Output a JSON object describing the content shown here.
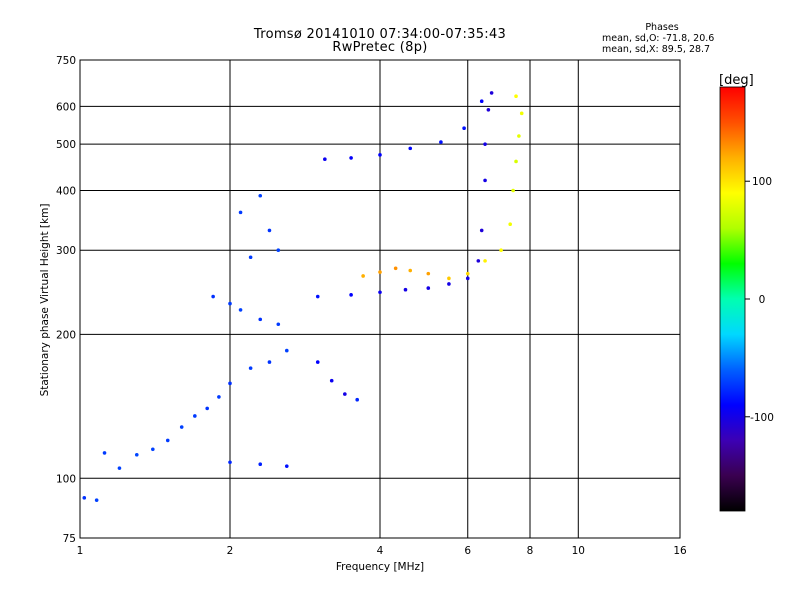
{
  "header": {
    "title_line1": "Tromsø 20141010 07:34:00-07:35:43",
    "title_line2": "RwPretec (8p)"
  },
  "phases": {
    "heading": "Phases",
    "stats": [
      {
        "label": "mean, sd,O:",
        "value1": "-71.8,",
        "value2": "20.6"
      },
      {
        "label": "mean, sd,X:",
        "value1": "89.5,",
        "value2": "28.7"
      }
    ]
  },
  "colorbar": {
    "unit": "[deg]",
    "range": [
      -180,
      180
    ],
    "ticks": [
      {
        "value": 100,
        "label": "100"
      },
      {
        "value": 0,
        "label": "0"
      },
      {
        "value": -100,
        "label": "-100"
      }
    ],
    "colors": [
      "#000000",
      "#3a0050",
      "#3c00b4",
      "#0000ff",
      "#0060ff",
      "#00d8ff",
      "#00ffb0",
      "#00ff00",
      "#b0ff00",
      "#ffff00",
      "#ffb000",
      "#ff5000",
      "#ff0000"
    ]
  },
  "chart_data": {
    "type": "scatter",
    "title": "Tromsø 20141010 07:34:00-07:35:43",
    "subtitle": "RwPretec (8p)",
    "xlabel": "Frequency [MHz]",
    "ylabel": "Stationary phase Virtual Height [km]",
    "x_scale": "log",
    "y_scale": "log",
    "xlim": [
      1,
      16
    ],
    "ylim": [
      75,
      750
    ],
    "x_ticks": [
      {
        "value": 1,
        "label": "1"
      },
      {
        "value": 2,
        "label": "2"
      },
      {
        "value": 4,
        "label": "4"
      },
      {
        "value": 6,
        "label": "6"
      },
      {
        "value": 8,
        "label": "8"
      },
      {
        "value": 10,
        "label": "10"
      },
      {
        "value": 16,
        "label": "16"
      }
    ],
    "y_ticks": [
      {
        "value": 75,
        "label": "75"
      },
      {
        "value": 100,
        "label": "100"
      },
      {
        "value": 200,
        "label": "200"
      },
      {
        "value": 300,
        "label": "300"
      },
      {
        "value": 400,
        "label": "400"
      },
      {
        "value": 500,
        "label": "500"
      },
      {
        "value": 600,
        "label": "600"
      },
      {
        "value": 750,
        "label": "750"
      }
    ],
    "grid": true,
    "color_variable": "phase [deg]",
    "series": [
      {
        "mode": "O",
        "points": [
          [
            1.02,
            91,
            -75
          ],
          [
            1.08,
            90,
            -70
          ],
          [
            1.12,
            113,
            -72
          ],
          [
            1.2,
            105,
            -70
          ],
          [
            1.3,
            112,
            -68
          ],
          [
            1.4,
            115,
            -70
          ],
          [
            1.5,
            120,
            -72
          ],
          [
            1.6,
            128,
            -70
          ],
          [
            1.7,
            135,
            -72
          ],
          [
            1.8,
            140,
            -74
          ],
          [
            1.9,
            148,
            -72
          ],
          [
            2.0,
            158,
            -75
          ],
          [
            2.2,
            170,
            -72
          ],
          [
            2.4,
            175,
            -74
          ],
          [
            2.6,
            185,
            -70
          ],
          [
            1.85,
            240,
            -75
          ],
          [
            2.0,
            232,
            -72
          ],
          [
            2.1,
            225,
            -70
          ],
          [
            2.3,
            215,
            -75
          ],
          [
            2.5,
            210,
            -72
          ],
          [
            2.0,
            108,
            -78
          ],
          [
            2.3,
            107,
            -80
          ],
          [
            2.6,
            106,
            -85
          ],
          [
            2.1,
            360,
            -72
          ],
          [
            2.3,
            390,
            -70
          ],
          [
            2.4,
            330,
            -74
          ],
          [
            2.2,
            290,
            -72
          ],
          [
            2.5,
            300,
            -70
          ],
          [
            3.0,
            240,
            -85
          ],
          [
            3.5,
            242,
            -90
          ],
          [
            4.0,
            245,
            -95
          ],
          [
            4.5,
            248,
            -100
          ],
          [
            5.0,
            250,
            -100
          ],
          [
            5.5,
            255,
            -100
          ],
          [
            6.0,
            262,
            -100
          ],
          [
            6.3,
            285,
            -105
          ],
          [
            6.4,
            330,
            -105
          ],
          [
            6.5,
            420,
            -100
          ],
          [
            6.5,
            500,
            -100
          ],
          [
            6.6,
            590,
            -105
          ],
          [
            6.7,
            640,
            -105
          ],
          [
            3.1,
            465,
            -95
          ],
          [
            3.5,
            468,
            -92
          ],
          [
            4.0,
            475,
            -90
          ],
          [
            4.6,
            490,
            -88
          ],
          [
            5.3,
            505,
            -85
          ],
          [
            5.9,
            540,
            -85
          ],
          [
            6.4,
            615,
            -90
          ],
          [
            3.0,
            175,
            -90
          ],
          [
            3.2,
            160,
            -95
          ],
          [
            3.4,
            150,
            -100
          ],
          [
            3.6,
            146,
            -78
          ]
        ]
      },
      {
        "mode": "X",
        "points": [
          [
            4.3,
            275,
            130
          ],
          [
            4.6,
            272,
            120
          ],
          [
            5.0,
            268,
            125
          ],
          [
            5.5,
            262,
            110
          ],
          [
            6.0,
            268,
            105
          ],
          [
            6.5,
            285,
            95
          ],
          [
            7.0,
            300,
            90
          ],
          [
            7.3,
            340,
            85
          ],
          [
            7.4,
            400,
            80
          ],
          [
            7.5,
            460,
            75
          ],
          [
            7.6,
            520,
            80
          ],
          [
            7.7,
            580,
            85
          ],
          [
            7.5,
            630,
            90
          ],
          [
            3.7,
            265,
            120
          ],
          [
            4.0,
            270,
            125
          ]
        ]
      }
    ]
  }
}
